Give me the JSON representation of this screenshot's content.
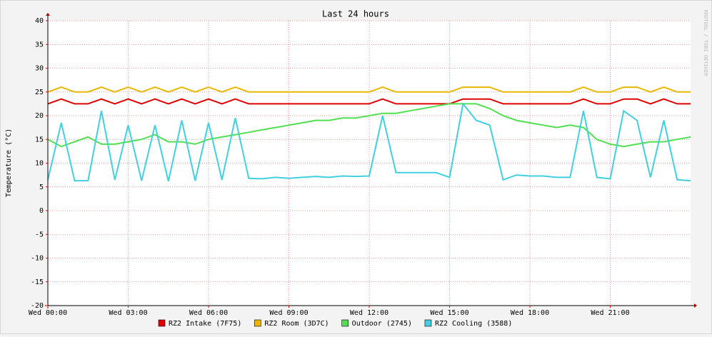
{
  "chart_data": {
    "type": "line",
    "title": "Last 24 hours",
    "y_label": "Temperature (°C)",
    "watermark": "RRDTOOL / TOBI OETIKER",
    "x": [
      0,
      0.5,
      1,
      1.5,
      2,
      2.5,
      3,
      3.5,
      4,
      4.5,
      5,
      5.5,
      6,
      6.5,
      7,
      7.5,
      8,
      8.5,
      9,
      9.5,
      10,
      10.5,
      11,
      11.5,
      12,
      12.5,
      13,
      13.5,
      14,
      14.5,
      15,
      15.5,
      16,
      16.5,
      17,
      17.5,
      18,
      18.5,
      19,
      19.5,
      20,
      20.5,
      21,
      21.5,
      22,
      22.5,
      23,
      23.5,
      24
    ],
    "xlim": [
      0,
      24
    ],
    "xticks": [
      {
        "value": 0,
        "label": "Wed 00:00"
      },
      {
        "value": 3,
        "label": "Wed 03:00"
      },
      {
        "value": 6,
        "label": "Wed 06:00"
      },
      {
        "value": 9,
        "label": "Wed 09:00"
      },
      {
        "value": 12,
        "label": "Wed 12:00"
      },
      {
        "value": 15,
        "label": "Wed 15:00"
      },
      {
        "value": 18,
        "label": "Wed 18:00"
      },
      {
        "value": 21,
        "label": "Wed 21:00"
      }
    ],
    "ylim": [
      -20,
      40
    ],
    "yticks": [
      -20,
      -15,
      -10,
      -5,
      0,
      5,
      10,
      15,
      20,
      25,
      30,
      35,
      40
    ],
    "grid": true,
    "series": [
      {
        "name": "RZ2 Intake (7F75)",
        "color": "#e00000",
        "values": [
          22.5,
          23.5,
          22.5,
          22.5,
          23.5,
          22.5,
          23.5,
          22.5,
          23.5,
          22.5,
          23.5,
          22.5,
          23.5,
          22.5,
          23.5,
          22.5,
          22.5,
          22.5,
          22.5,
          22.5,
          22.5,
          22.5,
          22.5,
          22.5,
          22.5,
          23.5,
          22.5,
          22.5,
          22.5,
          22.5,
          22.5,
          23.5,
          23.5,
          23.5,
          22.5,
          22.5,
          22.5,
          22.5,
          22.5,
          22.5,
          23.5,
          22.5,
          22.5,
          23.5,
          23.5,
          22.5,
          23.5,
          22.5,
          22.5
        ]
      },
      {
        "name": "RZ2 Room (3D7C)",
        "color": "#e8b800",
        "values": [
          25,
          26,
          25,
          25,
          26,
          25,
          26,
          25,
          26,
          25,
          26,
          25,
          26,
          25,
          26,
          25,
          25,
          25,
          25,
          25,
          25,
          25,
          25,
          25,
          25,
          26,
          25,
          25,
          25,
          25,
          25,
          26,
          26,
          26,
          25,
          25,
          25,
          25,
          25,
          25,
          26,
          25,
          25,
          26,
          26,
          25,
          26,
          25,
          25
        ]
      },
      {
        "name": "Outdoor (2745)",
        "color": "#50e050",
        "values": [
          15,
          13.5,
          14.5,
          15.5,
          14,
          14,
          14.5,
          15,
          16,
          14.5,
          14.5,
          14,
          15,
          15.5,
          16,
          16.5,
          17,
          17.5,
          18,
          18.5,
          19,
          19,
          19.5,
          19.5,
          20,
          20.5,
          20.5,
          21,
          21.5,
          22,
          22.5,
          22.5,
          22.5,
          21.5,
          20,
          19,
          18.5,
          18,
          17.5,
          18,
          17.5,
          15,
          14,
          13.5,
          14,
          14.5,
          14.5,
          15,
          15.5
        ]
      },
      {
        "name": "RZ2 Cooling (3588)",
        "color": "#40d0e0",
        "values": [
          6.5,
          18.5,
          6.3,
          6.3,
          21,
          6.5,
          18,
          6.3,
          18,
          6.2,
          19,
          6.3,
          18.5,
          6.5,
          19.5,
          6.8,
          6.7,
          7,
          6.8,
          7,
          7.2,
          7,
          7.3,
          7.2,
          7.3,
          20,
          8,
          8,
          8,
          8,
          7,
          22.5,
          19,
          18,
          6.5,
          7.5,
          7.3,
          7.3,
          7,
          7,
          21,
          7,
          6.7,
          21,
          19,
          7,
          19,
          6.5,
          6.3
        ]
      }
    ]
  }
}
